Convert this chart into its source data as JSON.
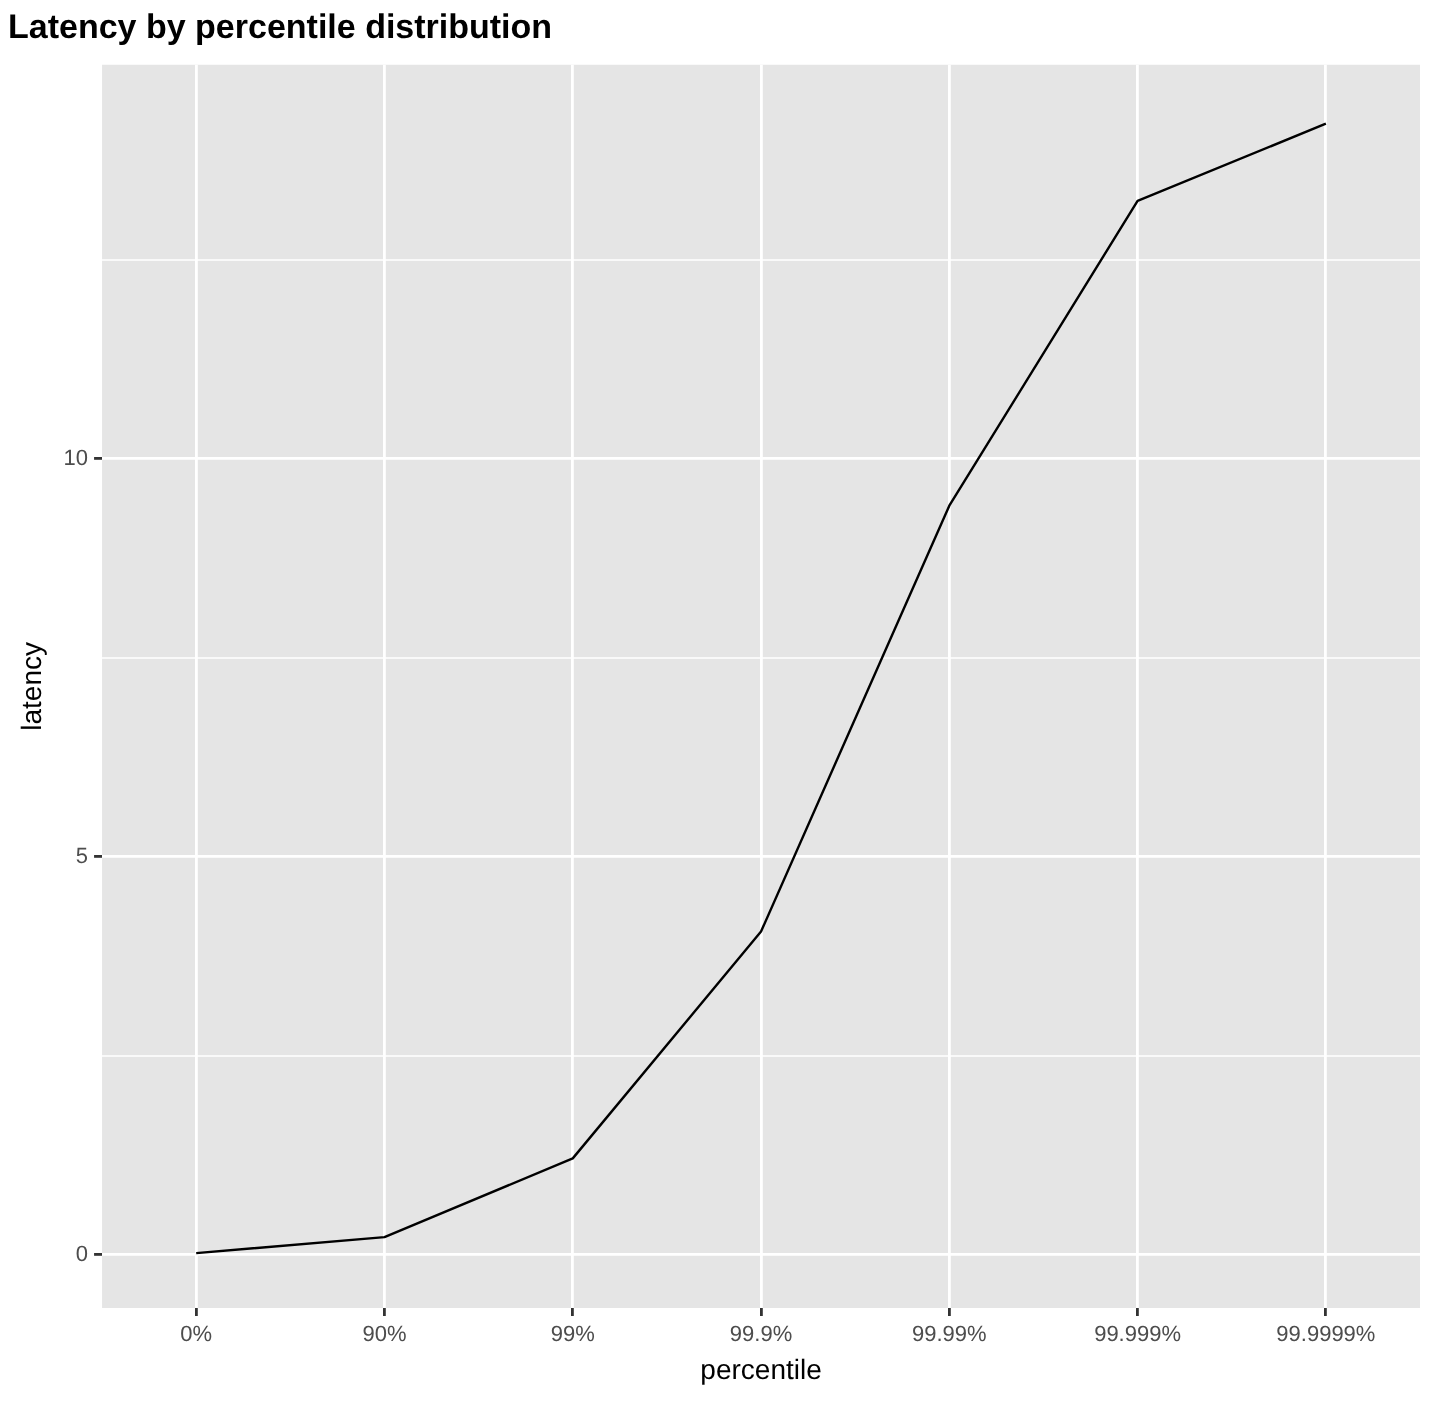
{
  "chart_data": {
    "type": "line",
    "title": "Latency by percentile distribution",
    "xlabel": "percentile",
    "ylabel": "latency",
    "categories": [
      "0%",
      "90%",
      "99%",
      "99.9%",
      "99.99%",
      "99.999%",
      "99.9999%"
    ],
    "series": [
      {
        "color": "#000000",
        "values": [
          0.02,
          0.22,
          1.21,
          4.06,
          9.41,
          13.24,
          14.21
        ]
      }
    ],
    "ylim": [
      -0.67,
      14.95
    ],
    "yticks": [
      0,
      {
        "value": 2.5,
        "label": null
      },
      5,
      {
        "value": 7.5,
        "label": null
      },
      10,
      {
        "value": 12.5,
        "label": null
      }
    ],
    "grid": true,
    "legend": false,
    "marker": "none",
    "line_style": "solid"
  }
}
